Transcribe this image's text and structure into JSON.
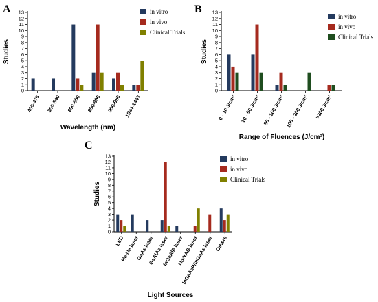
{
  "colors": {
    "in_vitro": "#243a5e",
    "in_vivo": "#a52a1e",
    "clinical": "#808000",
    "clinical_B": "#1f4d1f"
  },
  "chart_data": [
    {
      "type": "bar",
      "panel": "A",
      "xlabel": "Wavelength (nm)",
      "ylabel": "Studies",
      "ylim": [
        0,
        13
      ],
      "yticks": [
        0,
        1,
        2,
        3,
        4,
        5,
        6,
        7,
        8,
        9,
        10,
        11,
        12,
        13
      ],
      "legend_position": "top-right",
      "categories": [
        "400-475",
        "500-540",
        "600-660",
        "800-880",
        "900-980",
        "1064-1443"
      ],
      "series": [
        {
          "name": "in vitro",
          "values": [
            2,
            2,
            11,
            3,
            2,
            1
          ]
        },
        {
          "name": "in vivo",
          "values": [
            0,
            0,
            2,
            11,
            3,
            1
          ]
        },
        {
          "name": "Clinical Trials",
          "values": [
            0,
            0,
            1,
            3,
            1,
            5
          ]
        }
      ]
    },
    {
      "type": "bar",
      "panel": "B",
      "xlabel": "Range of Fluences (J/cm²)",
      "ylabel": "Studies",
      "ylim": [
        0,
        13
      ],
      "yticks": [
        0,
        1,
        2,
        3,
        4,
        5,
        6,
        7,
        8,
        9,
        10,
        11,
        12,
        13
      ],
      "legend_position": "top-right",
      "categories": [
        "0 - 10 J/cm²",
        "10 - 50 J/cm²",
        "50 - 100 J/cm²",
        "100 - 200 J/cm²",
        ">200 J/cm²"
      ],
      "series": [
        {
          "name": "in vitro",
          "values": [
            6,
            6,
            1,
            0,
            0
          ]
        },
        {
          "name": "in vivo",
          "values": [
            4,
            11,
            3,
            0,
            1
          ]
        },
        {
          "name": "Clinical Trials",
          "values": [
            3,
            3,
            1,
            3,
            1
          ]
        }
      ]
    },
    {
      "type": "bar",
      "panel": "C",
      "xlabel": "Light Sources",
      "ylabel": "Studies",
      "ylim": [
        0,
        13
      ],
      "yticks": [
        0,
        1,
        2,
        3,
        4,
        5,
        6,
        7,
        8,
        9,
        10,
        11,
        12,
        13
      ],
      "legend_position": "top-right",
      "categories": [
        "LED",
        "He-Ne laser",
        "GaAs laser",
        "GaAlAs laser",
        "InGaAlP laser",
        "Nd:YAG laser",
        "InGaAsP/InGaAs laser",
        "Others"
      ],
      "series": [
        {
          "name": "in vitro",
          "values": [
            3,
            3,
            2,
            2,
            1,
            0,
            0,
            4
          ]
        },
        {
          "name": "in vivo",
          "values": [
            2,
            0,
            0,
            12,
            0,
            1,
            3,
            2
          ]
        },
        {
          "name": "Clinical Trials",
          "values": [
            1,
            0,
            0,
            1,
            0,
            4,
            0,
            3
          ]
        }
      ]
    }
  ]
}
